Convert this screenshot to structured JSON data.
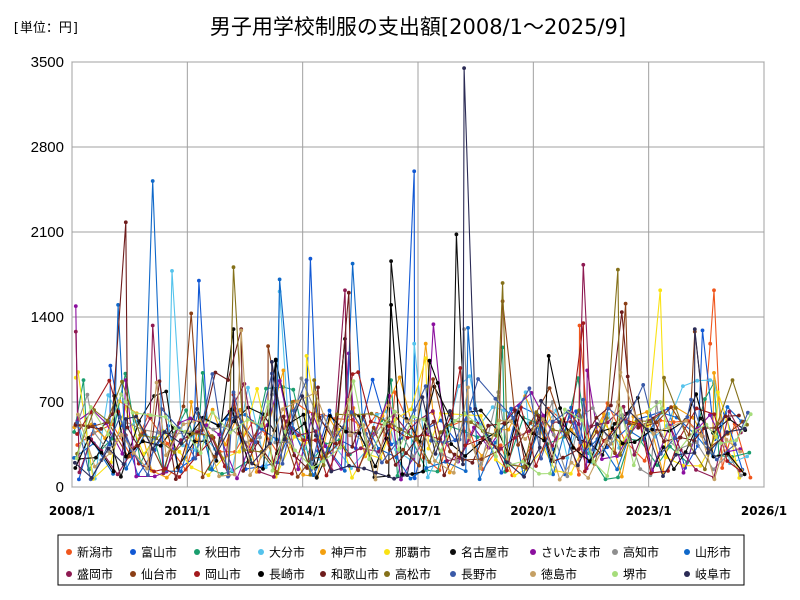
{
  "chart_data": {
    "type": "line",
    "title": "男子用学校制服の支出額[2008/1～2025/9]",
    "unit_label": "[単位：円]",
    "xlabel": "",
    "ylabel": "",
    "xlim": [
      2008.0,
      2026.0
    ],
    "ylim": [
      0,
      3500
    ],
    "yticks": [
      0,
      700,
      1400,
      2100,
      2800,
      3500
    ],
    "ytick_labels": [
      "0",
      "700",
      "1400",
      "2100",
      "2800",
      "3500"
    ],
    "xticks": [
      2008,
      2011,
      2014,
      2017,
      2020,
      2023,
      2026
    ],
    "xtick_labels": [
      "2008/1",
      "2011/1",
      "2014/1",
      "2017/1",
      "2020/1",
      "2023/1",
      "2026/1"
    ],
    "grid": true,
    "legend_position": "bottom",
    "series": [
      {
        "name": "新潟市",
        "color": "#f0561d",
        "peaks": [
          [
            2016.4,
            780
          ],
          [
            2020.8,
            560
          ],
          [
            2024.7,
            1620
          ],
          [
            2024.6,
            1180
          ],
          [
            2021.2,
            1330
          ]
        ]
      },
      {
        "name": "富山市",
        "color": "#1158d4",
        "peaks": [
          [
            2009.0,
            1000
          ],
          [
            2011.3,
            1700
          ],
          [
            2014.2,
            1880
          ],
          [
            2016.9,
            2600
          ],
          [
            2024.4,
            1290
          ]
        ]
      },
      {
        "name": "秋田市",
        "color": "#1a9e6e",
        "peaks": [
          [
            2008.3,
            880
          ],
          [
            2011.4,
            940
          ],
          [
            2016.3,
            880
          ],
          [
            2019.2,
            1150
          ],
          [
            2024.7,
            860
          ]
        ]
      },
      {
        "name": "大分市",
        "color": "#55c3ec",
        "peaks": [
          [
            2010.6,
            1780
          ],
          [
            2013.4,
            1610
          ],
          [
            2016.9,
            1180
          ],
          [
            2019.8,
            780
          ],
          [
            2024.6,
            880
          ]
        ]
      },
      {
        "name": "神戸市",
        "color": "#f3a00f",
        "peaks": [
          [
            2011.1,
            700
          ],
          [
            2013.5,
            960
          ],
          [
            2017.2,
            1180
          ],
          [
            2020.4,
            620
          ],
          [
            2024.7,
            940
          ]
        ]
      },
      {
        "name": "那覇市",
        "color": "#fae214",
        "peaks": [
          [
            2008.1,
            900
          ],
          [
            2014.1,
            1080
          ],
          [
            2017.2,
            1060
          ],
          [
            2023.3,
            1620
          ],
          [
            2024.8,
            780
          ]
        ]
      },
      {
        "name": "名古屋市",
        "color": "#0d0d0d",
        "peaks": [
          [
            2012.2,
            1300
          ],
          [
            2013.3,
            1040
          ],
          [
            2015.1,
            1220
          ],
          [
            2016.3,
            1860
          ],
          [
            2018.0,
            2080
          ]
        ]
      },
      {
        "name": "さいたま市",
        "color": "#8b0f9e",
        "peaks": [
          [
            2008.1,
            1490
          ],
          [
            2009.4,
            880
          ],
          [
            2015.2,
            1100
          ],
          [
            2017.4,
            1340
          ],
          [
            2021.4,
            960
          ]
        ]
      },
      {
        "name": "高知市",
        "color": "#8e8e8e",
        "peaks": [
          [
            2008.4,
            760
          ],
          [
            2013.2,
            760
          ],
          [
            2018.2,
            1300
          ],
          [
            2020.5,
            700
          ],
          [
            2023.2,
            700
          ]
        ]
      },
      {
        "name": "山形市",
        "color": "#0f68c9",
        "peaks": [
          [
            2009.2,
            1500
          ],
          [
            2010.1,
            2520
          ],
          [
            2013.4,
            1710
          ],
          [
            2015.3,
            1840
          ],
          [
            2018.3,
            1310
          ]
        ]
      },
      {
        "name": "盛岡市",
        "color": "#8e1a52",
        "peaks": [
          [
            2008.1,
            1280
          ],
          [
            2010.1,
            1330
          ],
          [
            2012.1,
            620
          ],
          [
            2015.1,
            1620
          ],
          [
            2021.3,
            1830
          ]
        ]
      },
      {
        "name": "仙台市",
        "color": "#8b3f16",
        "peaks": [
          [
            2011.1,
            1430
          ],
          [
            2013.1,
            1160
          ],
          [
            2019.2,
            1530
          ],
          [
            2022.4,
            1510
          ],
          [
            2024.2,
            1280
          ]
        ]
      },
      {
        "name": "岡山市",
        "color": "#a3191c",
        "peaks": [
          [
            2009.2,
            620
          ],
          [
            2012.2,
            760
          ],
          [
            2015.3,
            930
          ],
          [
            2018.1,
            980
          ],
          [
            2021.3,
            1350
          ]
        ]
      },
      {
        "name": "長崎市",
        "color": "#000000",
        "peaks": [
          [
            2009.1,
            750
          ],
          [
            2013.3,
            1050
          ],
          [
            2016.3,
            1500
          ],
          [
            2017.3,
            1040
          ],
          [
            2020.4,
            1080
          ]
        ]
      },
      {
        "name": "和歌山市",
        "color": "#6e1c1c",
        "peaks": [
          [
            2009.4,
            2180
          ],
          [
            2012.4,
            1300
          ],
          [
            2014.4,
            820
          ],
          [
            2015.2,
            1600
          ],
          [
            2022.3,
            1440
          ]
        ]
      },
      {
        "name": "高松市",
        "color": "#85711a",
        "peaks": [
          [
            2012.2,
            1810
          ],
          [
            2014.3,
            880
          ],
          [
            2019.2,
            1680
          ],
          [
            2022.2,
            1790
          ],
          [
            2023.4,
            900
          ]
        ]
      },
      {
        "name": "長野市",
        "color": "#3a5aa8",
        "peaks": [
          [
            2012.2,
            780
          ],
          [
            2014.1,
            880
          ],
          [
            2017.2,
            830
          ],
          [
            2021.3,
            720
          ],
          [
            2024.1,
            720
          ]
        ]
      },
      {
        "name": "徳島市",
        "color": "#c5a064",
        "peaks": [
          [
            2010.2,
            860
          ],
          [
            2012.4,
            1290
          ],
          [
            2015.2,
            720
          ],
          [
            2018.3,
            820
          ],
          [
            2022.2,
            700
          ]
        ]
      },
      {
        "name": "堺市",
        "color": "#a6dd7b",
        "peaks": [
          [
            2009.4,
            700
          ],
          [
            2013.1,
            700
          ],
          [
            2016.4,
            620
          ],
          [
            2019.1,
            520
          ],
          [
            2023.3,
            700
          ]
        ]
      },
      {
        "name": "岐阜市",
        "color": "#2b2b55",
        "peaks": [
          [
            2009.4,
            560
          ],
          [
            2013.2,
            1030
          ],
          [
            2018.2,
            3450
          ],
          [
            2020.2,
            710
          ],
          [
            2024.2,
            1300
          ]
        ]
      }
    ]
  }
}
